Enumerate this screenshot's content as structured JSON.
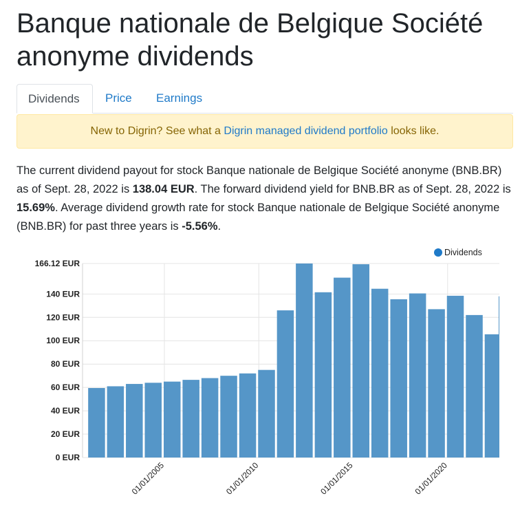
{
  "page": {
    "title": "Banque nationale de Belgique Société anonyme dividends"
  },
  "tabs": [
    {
      "label": "Dividends",
      "active": true
    },
    {
      "label": "Price",
      "active": false
    },
    {
      "label": "Earnings",
      "active": false
    }
  ],
  "alert": {
    "text_before": "New to Digrin? See what a ",
    "link_text": "Digrin managed dividend portfolio",
    "text_after": " looks like."
  },
  "summary": {
    "part1": "The current dividend payout for stock Banque nationale de Belgique Société anonyme (BNB.BR) as of Sept. 28, 2022 is ",
    "payout": "138.04 EUR",
    "part2": ". The forward dividend yield for BNB.BR as of Sept. 28, 2022 is ",
    "yield": "15.69%",
    "part3": ". Average dividend growth rate for stock Banque nationale de Belgique Société anonyme (BNB.BR) for past three years is ",
    "growth": "-5.56%",
    "part4": "."
  },
  "colors": {
    "accent": "#1f7ac8",
    "bar": "#5596c8",
    "alert_bg": "#fff3cd",
    "alert_text": "#856404"
  },
  "chart_data": {
    "type": "bar",
    "title": "",
    "xlabel": "",
    "ylabel": "",
    "legend": {
      "labels": [
        "Dividends"
      ],
      "position": "top-right"
    },
    "grid": true,
    "ylim": [
      0,
      166.12
    ],
    "y_ticks": [
      {
        "value": 166.12,
        "label": "166.12 EUR"
      },
      {
        "value": 140,
        "label": "140 EUR"
      },
      {
        "value": 120,
        "label": "120 EUR"
      },
      {
        "value": 100,
        "label": "100 EUR"
      },
      {
        "value": 80,
        "label": "80 EUR"
      },
      {
        "value": 60,
        "label": "60 EUR"
      },
      {
        "value": 40,
        "label": "40 EUR"
      },
      {
        "value": 20,
        "label": "20 EUR"
      },
      {
        "value": 0,
        "label": "0 EUR"
      }
    ],
    "x_ticks": [
      {
        "value": "2005-01-01",
        "label": "01/01/2005"
      },
      {
        "value": "2010-01-01",
        "label": "01/01/2010"
      },
      {
        "value": "2015-01-01",
        "label": "01/01/2015"
      },
      {
        "value": "2020-01-01",
        "label": "01/01/2020"
      }
    ],
    "x_range": [
      "2000-09-01",
      "2022-09-28"
    ],
    "series": [
      {
        "name": "Dividends",
        "x": [
          "2001-01-01",
          "2002-01-01",
          "2003-01-01",
          "2004-01-01",
          "2005-01-01",
          "2006-01-01",
          "2007-01-01",
          "2008-01-01",
          "2009-01-01",
          "2010-01-01",
          "2011-01-01",
          "2012-01-01",
          "2013-01-01",
          "2014-01-01",
          "2015-01-01",
          "2016-01-01",
          "2017-01-01",
          "2018-01-01",
          "2019-01-01",
          "2020-01-01",
          "2021-01-01",
          "2022-01-01",
          "2022-09-28"
        ],
        "values": [
          59.5,
          61,
          63,
          64,
          65,
          66.5,
          68,
          70,
          72,
          75,
          126,
          166.12,
          141.5,
          154,
          165.5,
          144.5,
          135.5,
          140.5,
          127,
          138.5,
          122,
          105.5,
          138.04
        ]
      }
    ]
  }
}
